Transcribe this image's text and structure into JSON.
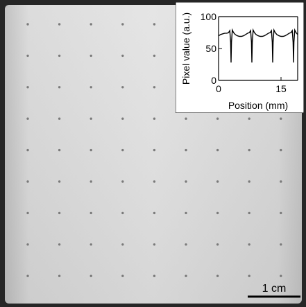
{
  "image": {
    "description_colors": {
      "phantom_edge": "#2a2a2a",
      "phantom_fill": "#d9d9d9",
      "dot": "#7a7a7a"
    },
    "dot_grid": {
      "rows": 9,
      "cols": 9
    }
  },
  "scale_bar": {
    "label": "1 cm"
  },
  "chart_data": {
    "type": "line",
    "xlabel": "Position (mm)",
    "ylabel": "Pixel value (a.u.)",
    "xlim": [
      0,
      19
    ],
    "ylim": [
      0,
      100
    ],
    "xticks": [
      0,
      15
    ],
    "yticks": [
      0,
      50,
      100
    ],
    "series": [
      {
        "x": [
          0.0,
          0.5,
          1.0,
          1.5,
          2.0,
          2.4,
          2.7,
          2.9,
          3.0,
          3.1,
          3.3,
          3.6,
          4.0,
          4.5,
          5.0,
          5.5,
          6.0,
          6.5,
          7.0,
          7.4,
          7.7,
          7.9,
          8.0,
          8.1,
          8.3,
          8.6,
          9.0,
          9.5,
          10.0,
          10.5,
          11.0,
          11.5,
          12.0,
          12.4,
          12.7,
          12.9,
          13.0,
          13.1,
          13.3,
          13.6,
          14.0,
          14.5,
          15.0,
          15.5,
          16.0,
          16.5,
          17.0,
          17.4,
          17.7,
          17.9,
          18.0,
          18.1,
          18.3,
          18.6,
          19.0
        ],
        "y": [
          70,
          72,
          73,
          74,
          74,
          75,
          78,
          60,
          28,
          60,
          79,
          75,
          72,
          70,
          69,
          69,
          70,
          72,
          74,
          75,
          78,
          60,
          28,
          60,
          79,
          75,
          72,
          70,
          69,
          69,
          70,
          72,
          74,
          75,
          78,
          60,
          28,
          60,
          79,
          75,
          72,
          70,
          69,
          69,
          70,
          72,
          74,
          75,
          78,
          60,
          28,
          60,
          79,
          75,
          72
        ]
      }
    ]
  }
}
